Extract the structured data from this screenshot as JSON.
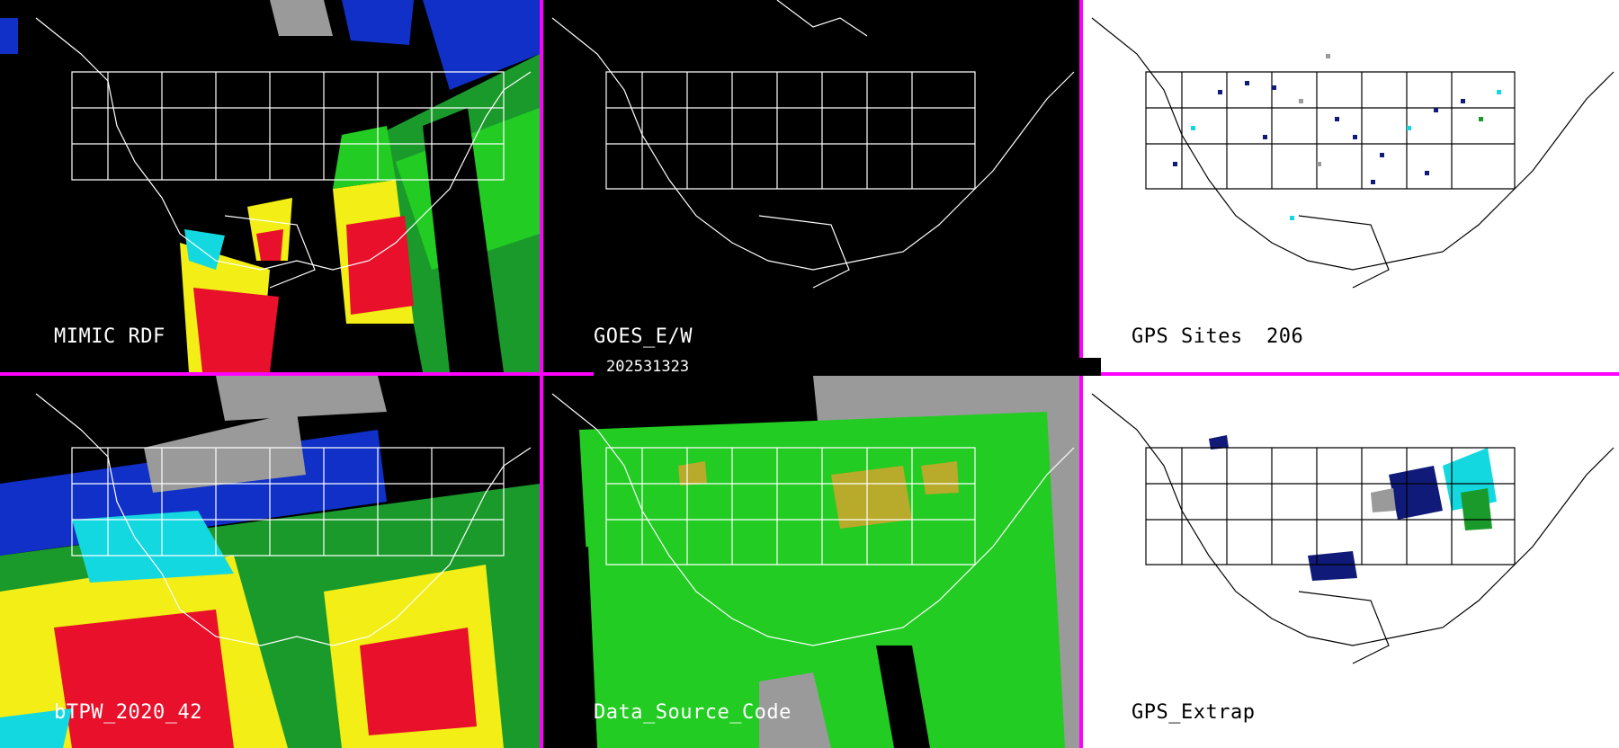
{
  "divider_color": "#ff00ff",
  "timestamp": "202531323",
  "panels": [
    {
      "id": "mimic",
      "label": "MIMIC RDF",
      "background": "#000000",
      "label_color": "light",
      "imagery": "satellite-swaths"
    },
    {
      "id": "goes",
      "label": "GOES_E/W",
      "background": "#000000",
      "label_color": "light",
      "imagery": "none"
    },
    {
      "id": "gps_sites",
      "label": "GPS Sites",
      "count": "206",
      "background": "#ffffff",
      "label_color": "dark",
      "imagery": "station-markers"
    },
    {
      "id": "btpw",
      "label": "bTPW_2020_42",
      "background": "#000000",
      "label_color": "light",
      "imagery": "blended-field"
    },
    {
      "id": "data_source",
      "label": "Data_Source_Code",
      "background": "#000000",
      "label_color": "light",
      "imagery": "source-code-field"
    },
    {
      "id": "gps_extrap",
      "label": "GPS_Extrap",
      "background": "#ffffff",
      "label_color": "dark",
      "imagery": "extrapolated-patches"
    }
  ],
  "palette": {
    "red": "#e8102a",
    "yellow": "#f2ee16",
    "green": "#22cc22",
    "cyan": "#14d8e0",
    "blue": "#1030c8",
    "navy": "#101a78",
    "gray": "#9a9a9a",
    "olive": "#b8aa2a"
  }
}
